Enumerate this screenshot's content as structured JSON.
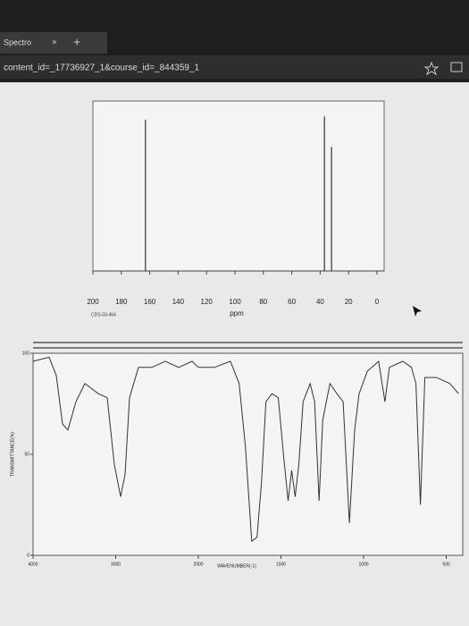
{
  "browser": {
    "tab_title": "Spectro",
    "tab_close": "×",
    "new_tab": "+",
    "url": "content_id=_17736927_1&course_id=_844359_1"
  },
  "chart_data": [
    {
      "type": "stick",
      "x": [
        163,
        37,
        32
      ],
      "values": [
        89,
        91,
        73
      ],
      "xlim": [
        200,
        0
      ],
      "ylim": [
        0,
        100
      ],
      "xticks": [
        200,
        180,
        160,
        140,
        120,
        100,
        80,
        60,
        40,
        20,
        0
      ],
      "xlabel": "ppm",
      "annotation": "CDS-03-464",
      "color": "#333333"
    },
    {
      "type": "line",
      "x": [
        4000,
        3805,
        3719,
        3643,
        3578,
        3481,
        3373,
        3211,
        3103,
        3016,
        2941,
        2886,
        2832,
        2724,
        2562,
        2400,
        2238,
        2076,
        2000,
        1903,
        1806,
        1753,
        1715,
        1677,
        1645,
        1618,
        1591,
        1554,
        1516,
        1484,
        1457,
        1435,
        1414,
        1392,
        1366,
        1323,
        1296,
        1269,
        1247,
        1204,
        1161,
        1124,
        1086,
        1054,
        1027,
        978,
        909,
        871,
        844,
        763,
        710,
        683,
        656,
        629,
        559,
        478,
        425
      ],
      "values": [
        96,
        98,
        89,
        65,
        62,
        76,
        85,
        80,
        78,
        45,
        29,
        40,
        78,
        93,
        93,
        96,
        93,
        96,
        93,
        93,
        96,
        85,
        54,
        7,
        9,
        36,
        76,
        80,
        78,
        49,
        27,
        42,
        29,
        45,
        76,
        85,
        76,
        27,
        67,
        85,
        80,
        76,
        16,
        62,
        80,
        91,
        96,
        76,
        93,
        96,
        93,
        85,
        25,
        88,
        88,
        85,
        80
      ],
      "xlim": [
        4000,
        400
      ],
      "ylim": [
        0,
        100
      ],
      "xticks": [
        4000,
        3000,
        2000,
        1500,
        1000,
        500
      ],
      "yticks": [
        100,
        50,
        0
      ],
      "xlabel": "WAVENUMBER(-1)",
      "ylabel": "TRANSMITTANCE(%)",
      "color": "#333333"
    }
  ]
}
